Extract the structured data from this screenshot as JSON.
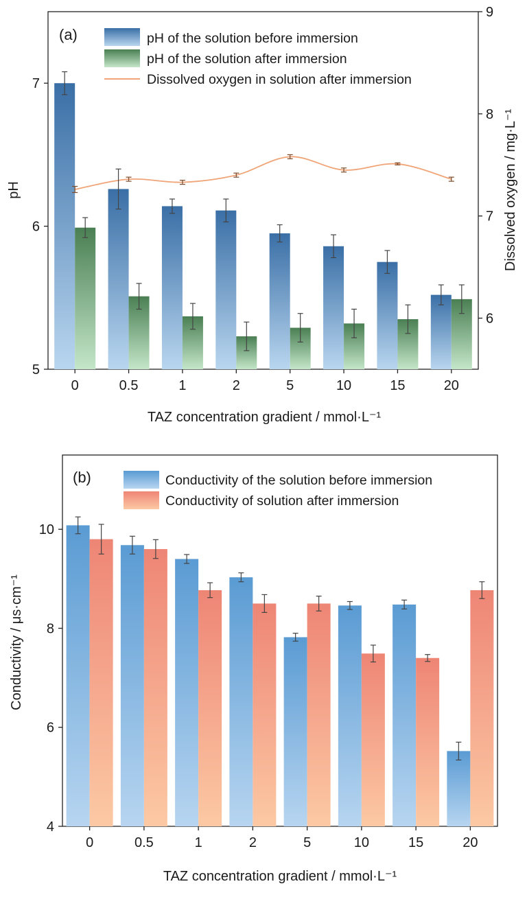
{
  "chart_data": [
    {
      "panel_label": "(a)",
      "type": "bar",
      "xlabel": "TAZ concentration gradient / mmol·L⁻¹",
      "ylabel": "pH",
      "y2label": "Dissolved oxygen / mg·L⁻¹",
      "categories": [
        "0",
        "0.5",
        "1",
        "2",
        "5",
        "10",
        "15",
        "20"
      ],
      "ylim": [
        5,
        7.5
      ],
      "yticks": [
        5,
        6,
        7
      ],
      "y2lim": [
        5.5,
        9
      ],
      "y2ticks": [
        6,
        7,
        8,
        9
      ],
      "grid": false,
      "legend_position": "top",
      "series": [
        {
          "name": "pH of the solution before immersion",
          "kind": "bar",
          "axis": "left",
          "values": [
            7.0,
            6.26,
            6.14,
            6.11,
            5.95,
            5.86,
            5.75,
            5.52
          ],
          "errors": [
            0.08,
            0.14,
            0.05,
            0.08,
            0.06,
            0.08,
            0.08,
            0.07
          ],
          "color_top": "#3a6fa6",
          "color_bottom": "#b9d6ef"
        },
        {
          "name": "pH of the solution after immersion",
          "kind": "bar",
          "axis": "left",
          "values": [
            5.99,
            5.51,
            5.37,
            5.23,
            5.29,
            5.32,
            5.35,
            5.49
          ],
          "errors": [
            0.07,
            0.09,
            0.09,
            0.1,
            0.1,
            0.1,
            0.1,
            0.1
          ],
          "color_top": "#4a7f53",
          "color_bottom": "#c4e6c9"
        },
        {
          "name": "Dissolved oxygen in solution after immersion",
          "kind": "line",
          "axis": "right",
          "values": [
            7.26,
            7.36,
            7.33,
            7.4,
            7.58,
            7.45,
            7.51,
            7.36
          ],
          "errors": [
            0.03,
            0.02,
            0.02,
            0.02,
            0.02,
            0.02,
            0.01,
            0.02
          ],
          "color": "#f0a477"
        }
      ]
    },
    {
      "panel_label": "(b)",
      "type": "bar",
      "xlabel": "TAZ concentration gradient / mmol·L⁻¹",
      "ylabel": "Conductivity / μs·cm⁻¹",
      "categories": [
        "0",
        "0.5",
        "1",
        "2",
        "5",
        "10",
        "15",
        "20"
      ],
      "ylim": [
        4,
        11.5
      ],
      "yticks": [
        4,
        6,
        8,
        10
      ],
      "grid": false,
      "legend_position": "top",
      "series": [
        {
          "name": "Conductivity of the solution before immersion",
          "kind": "bar",
          "values": [
            10.08,
            9.68,
            9.4,
            9.03,
            7.82,
            8.46,
            8.48,
            5.52
          ],
          "errors": [
            0.17,
            0.18,
            0.09,
            0.09,
            0.08,
            0.08,
            0.09,
            0.18
          ],
          "color_top": "#5a9bd3",
          "color_bottom": "#b7d5f0"
        },
        {
          "name": "Conductivity of solution after immersion",
          "kind": "bar",
          "values": [
            9.8,
            9.6,
            8.77,
            8.5,
            8.5,
            7.49,
            7.4,
            8.77
          ],
          "errors": [
            0.3,
            0.19,
            0.15,
            0.18,
            0.15,
            0.17,
            0.07,
            0.17
          ],
          "color_top": "#ee8575",
          "color_bottom": "#fcc9a4"
        }
      ]
    }
  ]
}
